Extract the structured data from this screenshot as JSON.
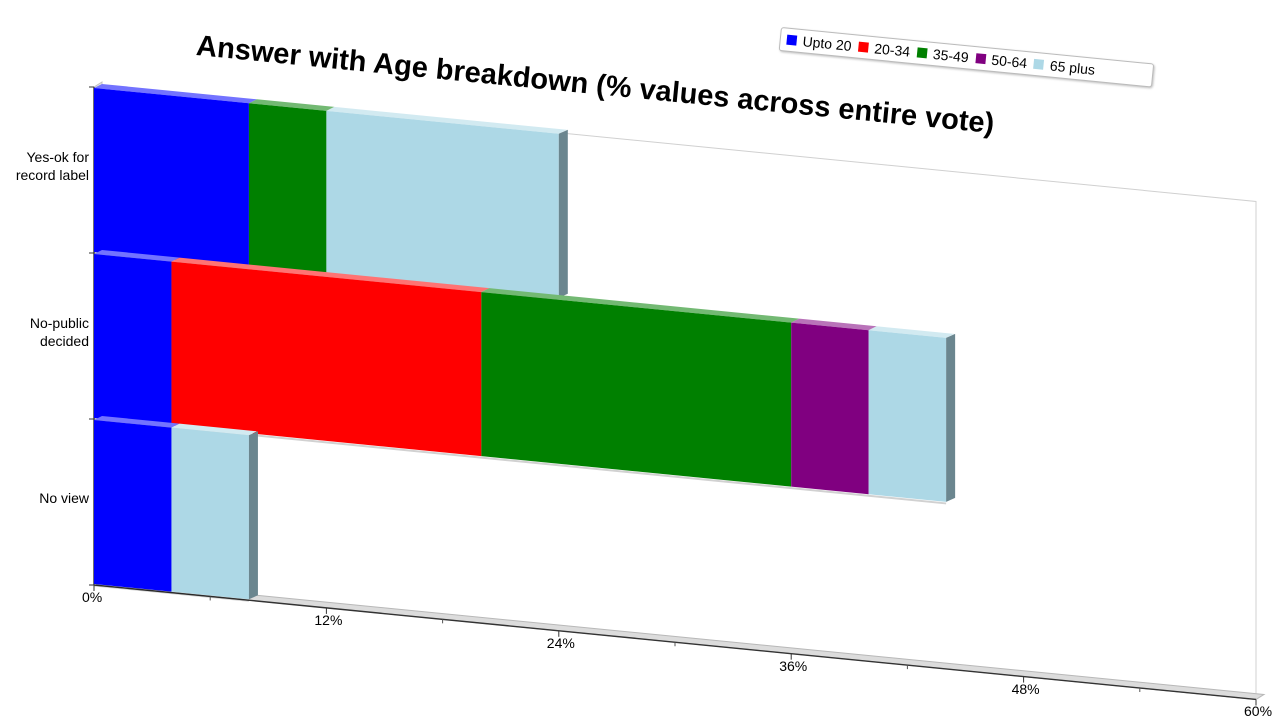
{
  "chart_data": {
    "type": "bar",
    "orientation": "horizontal",
    "stacked": true,
    "title": "Answer with Age breakdown (% values across entire vote)",
    "categories": [
      "Yes-ok for record label",
      "No-public decided",
      "No view"
    ],
    "category_lines": [
      [
        "Yes-ok for",
        "record label"
      ],
      [
        "No-public",
        "decided"
      ],
      [
        "No view"
      ]
    ],
    "series": [
      {
        "name": "Upto 20",
        "color": "#0000ff",
        "values": [
          8,
          4,
          4
        ]
      },
      {
        "name": "20-34",
        "color": "#ff0000",
        "values": [
          0,
          16,
          0
        ]
      },
      {
        "name": "35-49",
        "color": "#008000",
        "values": [
          4,
          16,
          0
        ]
      },
      {
        "name": "50-64",
        "color": "#800080",
        "values": [
          0,
          4,
          0
        ]
      },
      {
        "name": "65 plus",
        "color": "#add8e6",
        "values": [
          12,
          4,
          4
        ]
      }
    ],
    "xlim": [
      0,
      60
    ],
    "xticks": [
      "0%",
      "12%",
      "24%",
      "36%",
      "48%",
      "60%"
    ],
    "legend_position": "top-right",
    "grid": false
  }
}
